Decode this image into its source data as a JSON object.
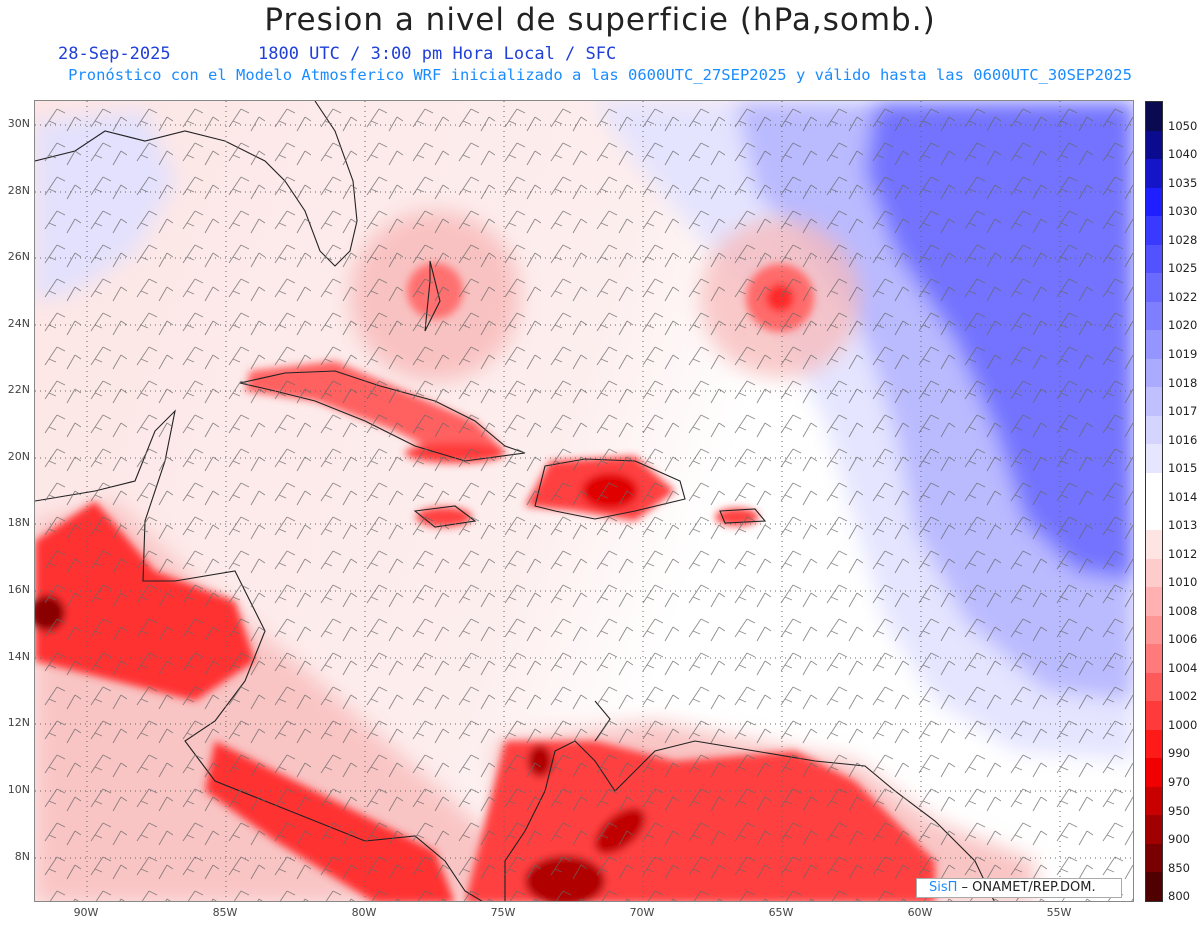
{
  "header": {
    "title": "Presion a nivel de superficie (hPa,somb.)",
    "date": "28-Sep-2025",
    "time": "1800 UTC / 3:00 pm Hora Local / SFC",
    "forecast": "Pronóstico con el Modelo Atmosferico WRF inicializado a las 0600UTC_27SEP2025 y válido hasta las  0600UTC_30SEP2025"
  },
  "map": {
    "lat_labels": [
      "30N",
      "28N",
      "26N",
      "24N",
      "22N",
      "20N",
      "18N",
      "16N",
      "14N",
      "12N",
      "10N",
      "8N"
    ],
    "lon_labels": [
      "90W",
      "85W",
      "80W",
      "75W",
      "70W",
      "65W",
      "60W",
      "55W"
    ],
    "colorbar": {
      "labels": [
        "1050",
        "1040",
        "1035",
        "1030",
        "1028",
        "1025",
        "1022",
        "1020",
        "1019",
        "1018",
        "1017",
        "1016",
        "1015",
        "1014",
        "1013",
        "1012",
        "1010",
        "1008",
        "1006",
        "1004",
        "1002",
        "1000",
        "990",
        "970",
        "950",
        "900",
        "850",
        "800"
      ],
      "colors": [
        "#0a0a50",
        "#0b0b8f",
        "#1414c8",
        "#1e1eff",
        "#3a3aff",
        "#5252ff",
        "#6a6aff",
        "#7e7eff",
        "#9595ff",
        "#aaaaff",
        "#c0c0ff",
        "#d4d4ff",
        "#e6e6ff",
        "#ffffff",
        "#ffffff",
        "#ffe4e4",
        "#ffcccc",
        "#ffb0b0",
        "#ff9696",
        "#ff7a7a",
        "#ff5a5a",
        "#ff3a3a",
        "#ff1a1a",
        "#f00000",
        "#c80000",
        "#a00000",
        "#780000",
        "#500000"
      ]
    },
    "credit_brand": "SisΠ",
    "credit_text": " – ONAMET/REP.DOM."
  }
}
